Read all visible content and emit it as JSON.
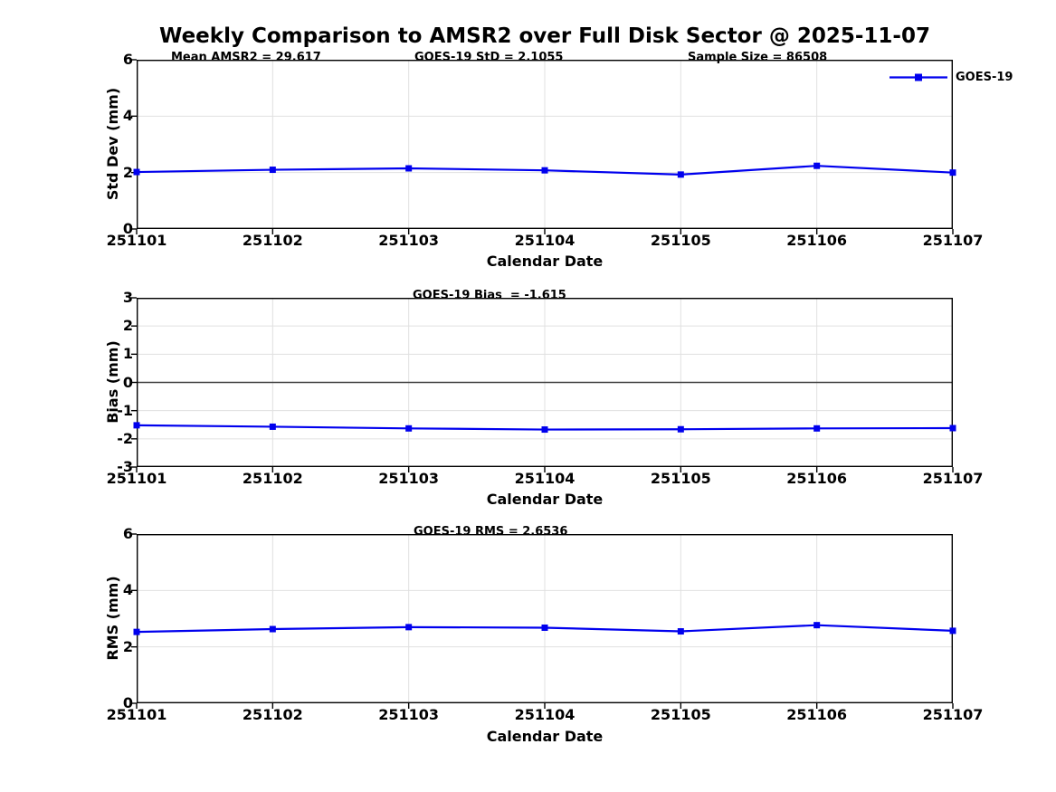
{
  "title": "Weekly Comparison to AMSR2 over Full Disk Sector @ 2025-11-07",
  "legend": {
    "label": "GOES-19"
  },
  "colors": {
    "line": "#0000EE",
    "marker": "#0000EE",
    "grid": "#E0E0E0",
    "zero_line": "#404040",
    "axis": "#000000",
    "text": "#000000",
    "background": "#FFFFFF"
  },
  "chart_data": [
    {
      "type": "line",
      "panel": "std-dev",
      "annotations": [
        "Mean AMSR2 = 29.617",
        "GOES-19 StD = 2.1055",
        "Sample Size = 86508"
      ],
      "categories": [
        "251101",
        "251102",
        "251103",
        "251104",
        "251105",
        "251106",
        "251107"
      ],
      "series": [
        {
          "name": "GOES-19",
          "values": [
            2.02,
            2.1,
            2.15,
            2.08,
            1.93,
            2.24,
            2.0
          ]
        }
      ],
      "xlabel": "Calendar Date",
      "ylabel": "Std Dev (mm)",
      "ylim": [
        0,
        6
      ],
      "yticks": [
        0,
        2,
        4,
        6
      ],
      "ytick_labels": [
        "0",
        "2",
        "4",
        "6"
      ],
      "grid": true,
      "zero_line": false,
      "legend_position": "top-right"
    },
    {
      "type": "line",
      "panel": "bias",
      "annotations": [
        "GOES-19 Bias  = -1.615"
      ],
      "categories": [
        "251101",
        "251102",
        "251103",
        "251104",
        "251105",
        "251106",
        "251107"
      ],
      "series": [
        {
          "name": "GOES-19",
          "values": [
            -1.52,
            -1.57,
            -1.63,
            -1.67,
            -1.66,
            -1.63,
            -1.62
          ]
        }
      ],
      "xlabel": "Calendar Date",
      "ylabel": "Bias (mm)",
      "ylim": [
        -3,
        3
      ],
      "yticks": [
        -3,
        -2,
        -1,
        0,
        1,
        2,
        3
      ],
      "ytick_labels": [
        "-3",
        "-2",
        "-1",
        "0",
        "1",
        "2",
        "3"
      ],
      "grid": true,
      "zero_line": true
    },
    {
      "type": "line",
      "panel": "rms",
      "annotations": [
        "GOES-19 RMS = 2.6536"
      ],
      "categories": [
        "251101",
        "251102",
        "251103",
        "251104",
        "251105",
        "251106",
        "251107"
      ],
      "series": [
        {
          "name": "GOES-19",
          "values": [
            2.53,
            2.63,
            2.7,
            2.68,
            2.55,
            2.77,
            2.57
          ]
        }
      ],
      "xlabel": "Calendar Date",
      "ylabel": "RMS (mm)",
      "ylim": [
        0,
        6
      ],
      "yticks": [
        0,
        2,
        4,
        6
      ],
      "ytick_labels": [
        "0",
        "2",
        "4",
        "6"
      ],
      "grid": true,
      "zero_line": false
    }
  ]
}
